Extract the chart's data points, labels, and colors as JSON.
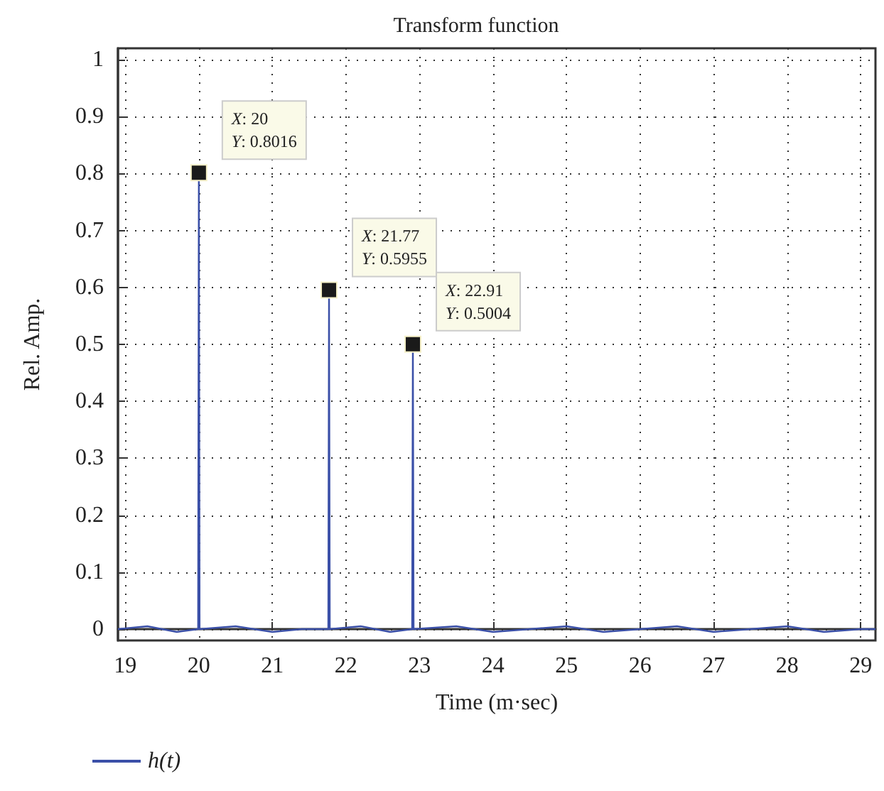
{
  "chart_data": {
    "type": "line",
    "title": "Transform function",
    "xlabel": "Time (m·sec)",
    "ylabel": "Rel. Amp.",
    "series": [
      {
        "name": "h(t)",
        "color": "#3b50a8",
        "x": [
          18.9,
          19.3,
          19.7,
          19.99,
          20,
          20.01,
          20.5,
          21,
          21.4,
          21.76,
          21.77,
          21.78,
          22.2,
          22.6,
          22.9,
          22.91,
          22.92,
          23.5,
          24,
          24.5,
          25,
          25.5,
          26,
          26.5,
          27,
          27.5,
          28,
          28.5,
          29,
          29.2
        ],
        "values": [
          0,
          0.005,
          -0.005,
          0,
          0.8016,
          0,
          0.005,
          -0.005,
          0,
          0,
          0.5955,
          0,
          0.005,
          -0.005,
          0,
          0.5004,
          0,
          0.005,
          -0.005,
          0,
          0.005,
          -0.005,
          0,
          0.005,
          -0.005,
          0,
          0.005,
          -0.005,
          0,
          0
        ]
      }
    ],
    "xlim": [
      18.9,
      29.2
    ],
    "xticks": [
      19,
      20,
      21,
      22,
      23,
      24,
      25,
      26,
      27,
      28,
      29
    ],
    "ylim": [
      -0.02,
      1.02
    ],
    "yticks": [
      0,
      0.1,
      0.2,
      0.3,
      0.4,
      0.5,
      0.6,
      0.7,
      0.8,
      0.9,
      1
    ],
    "grid": true,
    "legend": "bottom left",
    "marker": "none",
    "line_style": "solid",
    "annotations": [
      {
        "text": "X: 20\nY: 0.8016",
        "x": 20,
        "y": 0.8016
      },
      {
        "text": "X: 21.77\nY: 0.5955",
        "x": 21.77,
        "y": 0.5955
      },
      {
        "text": "X: 22.91\nY: 0.5004",
        "x": 22.91,
        "y": 0.5004
      }
    ]
  }
}
